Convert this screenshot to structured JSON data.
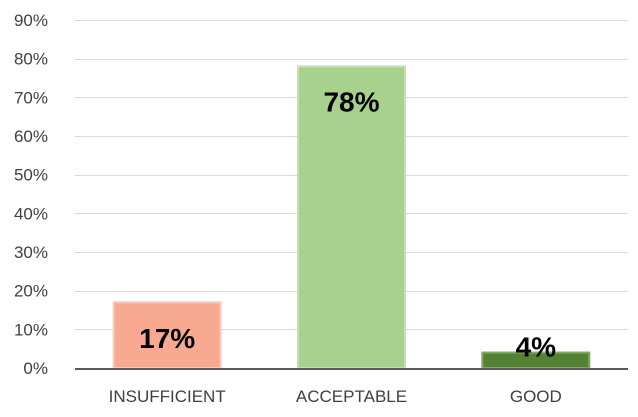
{
  "chart_data": {
    "type": "bar",
    "categories": [
      "INSUFFICIENT",
      "ACCEPTABLE",
      "GOOD"
    ],
    "values": [
      17,
      78,
      4
    ],
    "data_labels": [
      "17%",
      "78%",
      "4%"
    ],
    "bar_colors": [
      "#f8a98f",
      "#a9d18e",
      "#548235"
    ],
    "bar_border_colors": [
      "#f4cbbd",
      "#c5e0b4",
      "#7faa63"
    ],
    "ylim": [
      0,
      90
    ],
    "yticks": [
      0,
      10,
      20,
      30,
      40,
      50,
      60,
      70,
      80,
      90
    ],
    "ytick_labels": [
      "0%",
      "10%",
      "20%",
      "30%",
      "40%",
      "50%",
      "60%",
      "70%",
      "80%",
      "90%"
    ],
    "grid": true,
    "legend": "none",
    "title": "",
    "xlabel": "",
    "ylabel": ""
  }
}
